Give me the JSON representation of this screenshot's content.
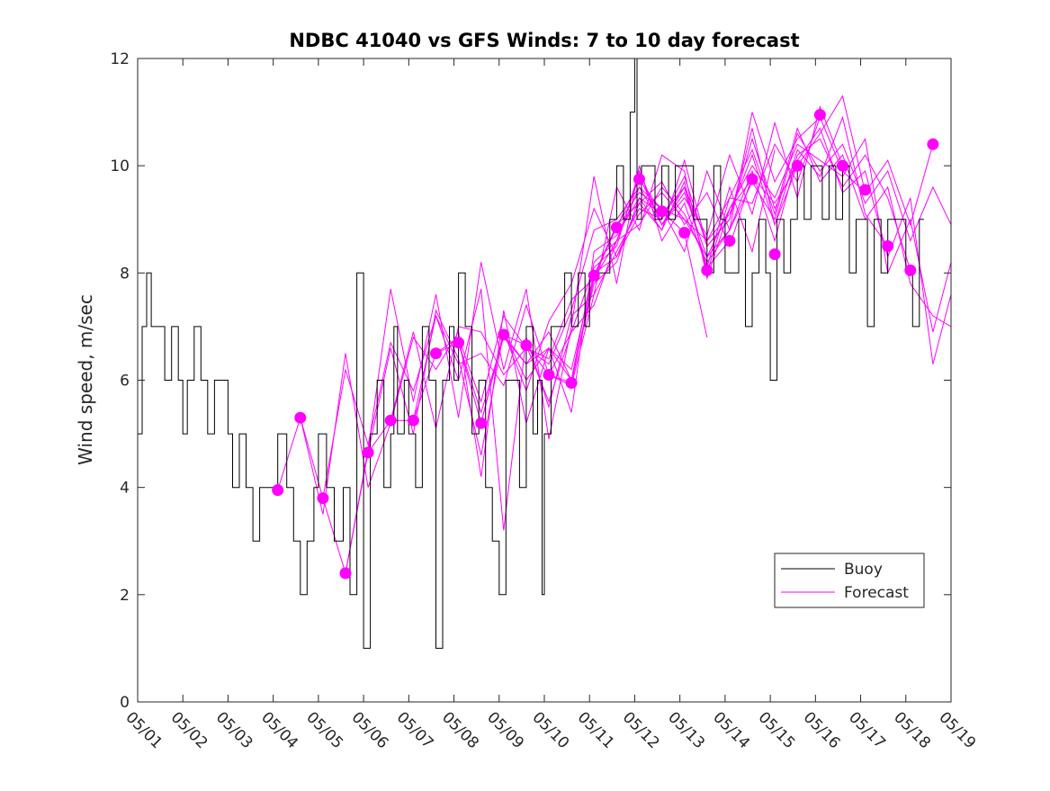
{
  "chart_data": {
    "type": "line",
    "title": "NDBC 41040 vs GFS Winds: 7 to 10 day forecast",
    "ylabel": "Wind speed, m/sec",
    "xlabel": "",
    "ylim": [
      0,
      12
    ],
    "xlim": [
      "05/01",
      "05/19"
    ],
    "y_ticks": [
      "0",
      "2",
      "4",
      "6",
      "8",
      "10",
      "12"
    ],
    "x_ticks": [
      "05/01",
      "05/02",
      "05/03",
      "05/04",
      "05/05",
      "05/06",
      "05/07",
      "05/08",
      "05/09",
      "05/10",
      "05/11",
      "05/12",
      "05/13",
      "05/14",
      "05/15",
      "05/16",
      "05/17",
      "05/18",
      "05/19"
    ],
    "legend": {
      "placement": "lower-right",
      "entries": [
        "Buoy",
        "Forecast"
      ]
    },
    "colors": {
      "buoy": "#000000",
      "forecast": "#ff00ff",
      "axes": "#262626"
    },
    "buoy": {
      "name": "Buoy",
      "x_day": [
        1.0,
        1.1,
        1.2,
        1.3,
        1.45,
        1.6,
        1.75,
        1.9,
        2.0,
        2.1,
        2.25,
        2.4,
        2.55,
        2.7,
        2.85,
        3.0,
        3.1,
        3.25,
        3.4,
        3.55,
        3.7,
        3.85,
        4.0,
        4.1,
        4.2,
        4.3,
        4.45,
        4.6,
        4.75,
        4.9,
        5.0,
        5.1,
        5.18,
        5.25,
        5.35,
        5.45,
        5.55,
        5.7,
        5.85,
        6.0,
        6.15,
        6.3,
        6.45,
        6.6,
        6.67,
        6.75,
        6.9,
        7.0,
        7.15,
        7.3,
        7.45,
        7.6,
        7.75,
        7.9,
        8.0,
        8.1,
        8.25,
        8.4,
        8.55,
        8.7,
        8.85,
        9.0,
        9.15,
        9.3,
        9.45,
        9.6,
        9.75,
        9.85,
        9.95,
        10.0,
        10.15,
        10.3,
        10.45,
        10.6,
        10.75,
        10.9,
        11.0,
        11.15,
        11.3,
        11.45,
        11.6,
        11.75,
        11.9,
        12.0,
        12.05,
        12.15,
        12.3,
        12.45,
        12.6,
        12.75,
        12.9,
        13.0,
        13.15,
        13.3,
        13.45,
        13.6,
        13.75,
        13.9,
        14.0,
        14.15,
        14.3,
        14.45,
        14.6,
        14.75,
        14.9,
        15.0,
        15.15,
        15.3,
        15.45,
        15.6,
        15.75,
        15.9,
        16.0,
        16.15,
        16.3,
        16.45,
        16.6,
        16.75,
        16.9,
        17.0,
        17.15,
        17.3,
        17.45,
        17.6,
        17.75,
        17.9,
        18.0,
        18.15,
        18.3
      ],
      "values": [
        5,
        7,
        8,
        7,
        7,
        6,
        7,
        6,
        5,
        6,
        7,
        6,
        5,
        6,
        6,
        5,
        4,
        5,
        4,
        3,
        4,
        4,
        4,
        5,
        5,
        4,
        3,
        2,
        3,
        4,
        5,
        5,
        4,
        4,
        3,
        3,
        4,
        2,
        8,
        1,
        5,
        6,
        4,
        5,
        7,
        5,
        6,
        5,
        4,
        7,
        6,
        1,
        6,
        7,
        6,
        8,
        7,
        5,
        6,
        4,
        3,
        2,
        6,
        6,
        4,
        7,
        5,
        6,
        2,
        5,
        7,
        7,
        8,
        7,
        8,
        7,
        8,
        8,
        8,
        9,
        10,
        9,
        11,
        12,
        9,
        10,
        10,
        9,
        10,
        9,
        10,
        10,
        10,
        9,
        9,
        8,
        10,
        9,
        8,
        8,
        9,
        7,
        8,
        9,
        8,
        6,
        9,
        8,
        9,
        10,
        9,
        10,
        10,
        9,
        10,
        9,
        10,
        8,
        9,
        9,
        7,
        9,
        8,
        9,
        9,
        9,
        8,
        7,
        9
      ]
    },
    "forecast_runs": [
      {
        "name": "Forecast",
        "x_day": [
          4.1,
          4.6,
          5.1,
          5.6,
          6.1,
          6.6,
          7.1,
          7.6,
          8.1,
          8.6,
          9.1,
          9.6,
          10.1,
          10.6,
          11.1,
          11.6,
          12.1,
          12.6,
          13.1,
          13.6
        ],
        "values": [
          3.95,
          5.3,
          3.8,
          2.4,
          4.65,
          5.25,
          5.25,
          6.5,
          6.7,
          5.2,
          6.85,
          6.65,
          6.1,
          5.95,
          7.95,
          8.85,
          9.75,
          9.15,
          8.75,
          6.8
        ]
      },
      {
        "name": "Forecast",
        "x_day": [
          4.6,
          5.1,
          5.6,
          6.1,
          6.6,
          7.1,
          7.6,
          8.1,
          8.6,
          9.1,
          9.6,
          10.1,
          10.6,
          11.1,
          11.6,
          12.1,
          12.6,
          13.1,
          13.6,
          14.1
        ],
        "values": [
          5.3,
          3.5,
          6.5,
          4.0,
          5.2,
          6.8,
          6.2,
          6.9,
          4.2,
          7.3,
          5.2,
          6.6,
          5.4,
          8.4,
          8.7,
          9.4,
          9.1,
          9.6,
          8.1,
          8.6
        ]
      },
      {
        "name": "Forecast",
        "x_day": [
          5.1,
          5.6,
          6.1,
          6.6,
          7.1,
          7.6,
          8.1,
          8.6,
          9.1,
          9.6,
          10.1,
          10.6,
          11.1,
          11.6,
          12.1,
          12.6,
          13.1,
          13.6,
          14.1,
          14.6
        ],
        "values": [
          3.8,
          6.2,
          4.8,
          6.7,
          5.8,
          7.2,
          6.0,
          7.7,
          3.2,
          6.8,
          5.5,
          7.2,
          7.6,
          9.6,
          8.8,
          10.2,
          9.9,
          7.9,
          9.2,
          9.75
        ]
      },
      {
        "name": "Forecast",
        "x_day": [
          5.6,
          6.1,
          6.6,
          7.1,
          7.6,
          8.1,
          8.6,
          9.1,
          9.6,
          10.1,
          10.6,
          11.1,
          11.6,
          12.1,
          12.6,
          13.1,
          13.6,
          14.1,
          14.6,
          15.1
        ],
        "values": [
          2.4,
          4.7,
          7.7,
          5.6,
          7.6,
          5.3,
          8.2,
          6.2,
          7.7,
          4.9,
          7.0,
          9.8,
          7.8,
          10.0,
          8.6,
          9.3,
          8.1,
          9.6,
          8.4,
          10.3
        ]
      },
      {
        "name": "Forecast",
        "x_day": [
          6.1,
          6.6,
          7.1,
          7.6,
          8.1,
          8.6,
          9.1,
          9.6,
          10.1,
          10.6,
          11.1,
          11.6,
          12.1,
          12.6,
          13.1,
          13.6,
          14.1,
          14.6,
          15.1,
          15.6
        ],
        "values": [
          4.65,
          6.6,
          5.0,
          7.3,
          6.4,
          4.6,
          6.9,
          5.8,
          7.1,
          7.8,
          9.2,
          8.3,
          9.3,
          8.8,
          10.1,
          8.5,
          9.0,
          10.7,
          8.9,
          10.0
        ]
      },
      {
        "name": "Forecast",
        "x_day": [
          6.6,
          7.1,
          7.6,
          8.1,
          8.6,
          9.1,
          9.6,
          10.1,
          10.6,
          11.1,
          11.6,
          12.1,
          12.6,
          13.1,
          13.6,
          14.1,
          14.6,
          15.1,
          15.6,
          16.1
        ],
        "values": [
          5.25,
          6.9,
          5.1,
          7.0,
          6.9,
          6.1,
          6.6,
          6.3,
          7.3,
          8.8,
          9.0,
          9.6,
          9.2,
          8.4,
          9.9,
          8.8,
          11.0,
          9.7,
          10.5,
          10.9
        ]
      },
      {
        "name": "Forecast",
        "x_day": [
          7.1,
          7.6,
          8.1,
          8.6,
          9.1,
          9.6,
          10.1,
          10.6,
          11.1,
          11.6,
          12.1,
          12.6,
          13.1,
          13.6,
          14.1,
          14.6,
          15.1,
          15.6,
          16.1,
          16.6
        ],
        "values": [
          5.25,
          7.2,
          6.3,
          6.5,
          5.9,
          7.4,
          6.1,
          6.9,
          8.1,
          8.5,
          9.9,
          8.9,
          9.4,
          8.7,
          10.2,
          9.1,
          10.8,
          9.4,
          11.1,
          10.0
        ]
      },
      {
        "name": "Forecast",
        "x_day": [
          7.6,
          8.1,
          8.6,
          9.1,
          9.6,
          10.1,
          10.6,
          11.1,
          11.6,
          12.1,
          12.6,
          13.1,
          13.6,
          14.1,
          14.6,
          15.1,
          15.6,
          16.1,
          16.6,
          17.1
        ],
        "values": [
          6.5,
          6.8,
          5.6,
          7.2,
          6.6,
          6.4,
          7.5,
          7.9,
          8.9,
          9.3,
          9.7,
          8.9,
          9.5,
          8.5,
          9.8,
          9.3,
          10.0,
          10.6,
          11.3,
          9.5
        ]
      },
      {
        "name": "Forecast",
        "x_day": [
          8.1,
          8.6,
          9.1,
          9.6,
          10.1,
          10.6,
          11.1,
          11.6,
          12.1,
          12.6,
          13.1,
          13.6,
          14.1,
          14.6,
          15.1,
          15.6,
          16.1,
          16.6,
          17.1,
          17.6
        ],
        "values": [
          6.7,
          5.4,
          6.8,
          6.3,
          6.9,
          6.0,
          8.2,
          8.6,
          9.6,
          8.9,
          9.6,
          8.6,
          9.1,
          10.2,
          8.9,
          10.3,
          9.8,
          10.9,
          9.1,
          8.5
        ]
      },
      {
        "name": "Forecast",
        "x_day": [
          8.6,
          9.1,
          9.6,
          10.1,
          10.6,
          11.1,
          11.6,
          12.1,
          12.6,
          13.1,
          13.6,
          14.1,
          14.6,
          15.1,
          15.6,
          16.1,
          16.6,
          17.1,
          17.6,
          18.1
        ],
        "values": [
          5.2,
          6.9,
          6.0,
          6.6,
          6.2,
          8.0,
          8.3,
          9.1,
          9.5,
          9.0,
          8.3,
          8.8,
          9.9,
          8.6,
          10.2,
          10.5,
          9.6,
          10.2,
          9.4,
          8.05
        ]
      },
      {
        "name": "Forecast",
        "x_day": [
          9.1,
          9.6,
          10.1,
          10.6,
          11.1,
          11.6,
          12.1,
          12.6,
          13.1,
          13.6,
          14.1,
          14.6,
          15.1,
          15.6,
          16.1,
          16.6,
          17.1,
          17.6,
          18.1,
          18.6
        ],
        "values": [
          6.85,
          6.3,
          6.6,
          6.0,
          7.8,
          8.2,
          9.4,
          8.8,
          9.7,
          8.0,
          9.4,
          9.3,
          10.4,
          9.7,
          10.9,
          9.9,
          9.5,
          10.1,
          8.9,
          10.4
        ]
      },
      {
        "name": "Forecast",
        "x_day": [
          9.6,
          10.1,
          10.6,
          11.1,
          11.6,
          12.1,
          12.6,
          13.1,
          13.6,
          14.1,
          14.6,
          15.1,
          15.6,
          16.1,
          16.6,
          17.1,
          17.6,
          18.1,
          18.6,
          19.0
        ],
        "values": [
          6.65,
          5.6,
          6.9,
          7.4,
          8.6,
          8.9,
          9.6,
          9.1,
          8.2,
          8.8,
          9.7,
          9.0,
          10.6,
          9.9,
          10.4,
          9.3,
          9.9,
          8.6,
          9.6,
          8.9
        ]
      },
      {
        "name": "Forecast",
        "x_day": [
          10.1,
          10.6,
          11.1,
          11.6,
          12.1,
          12.6,
          13.1,
          13.6,
          14.1,
          14.6,
          15.1,
          15.6,
          16.1,
          16.6,
          17.1,
          17.6,
          18.1,
          18.6,
          19.0
        ],
        "values": [
          6.1,
          5.9,
          7.6,
          8.4,
          9.2,
          9.0,
          9.8,
          8.5,
          9.0,
          10.5,
          9.2,
          10.1,
          10.7,
          9.5,
          9.9,
          8.3,
          9.4,
          6.3,
          7.6
        ]
      },
      {
        "name": "Forecast",
        "x_day": [
          10.6,
          11.1,
          11.6,
          12.1,
          12.6,
          13.1,
          13.6,
          14.1,
          14.6,
          15.1,
          15.6,
          16.1,
          16.6,
          17.1,
          17.6,
          18.1,
          18.6,
          19.0
        ],
        "values": [
          5.95,
          7.9,
          8.6,
          9.8,
          8.9,
          9.5,
          8.3,
          9.2,
          10.0,
          9.4,
          10.4,
          10.1,
          9.8,
          10.5,
          8.0,
          9.0,
          6.9,
          8.2
        ]
      },
      {
        "name": "Forecast",
        "x_day": [
          11.1,
          11.6,
          12.1,
          12.6,
          13.1,
          13.6,
          14.1,
          14.6,
          15.1,
          15.6,
          16.1,
          16.6,
          17.1,
          17.6,
          18.1,
          18.6,
          19.0
        ],
        "values": [
          7.95,
          8.9,
          9.5,
          9.2,
          9.0,
          8.6,
          9.4,
          10.3,
          9.1,
          10.7,
          9.7,
          10.2,
          9.0,
          9.6,
          7.8,
          7.2,
          7.0
        ]
      }
    ],
    "forecast_markers": {
      "name": "Forecast",
      "x_day": [
        4.1,
        4.6,
        5.1,
        5.6,
        6.1,
        6.6,
        7.1,
        7.6,
        8.1,
        8.6,
        9.1,
        9.6,
        10.1,
        10.6,
        11.1,
        11.6,
        12.1,
        12.6,
        13.1,
        13.6,
        14.1,
        14.6,
        15.1,
        15.6,
        16.1,
        16.6,
        17.1,
        17.6,
        18.1,
        18.6
      ],
      "values": [
        3.95,
        5.3,
        3.8,
        2.4,
        4.65,
        5.25,
        5.25,
        6.5,
        6.7,
        5.2,
        6.85,
        6.65,
        6.1,
        5.95,
        7.95,
        8.85,
        9.75,
        9.15,
        8.75,
        8.05,
        8.6,
        9.75,
        8.35,
        10.0,
        10.95,
        10.0,
        9.55,
        8.5,
        8.05,
        10.4
      ]
    }
  }
}
